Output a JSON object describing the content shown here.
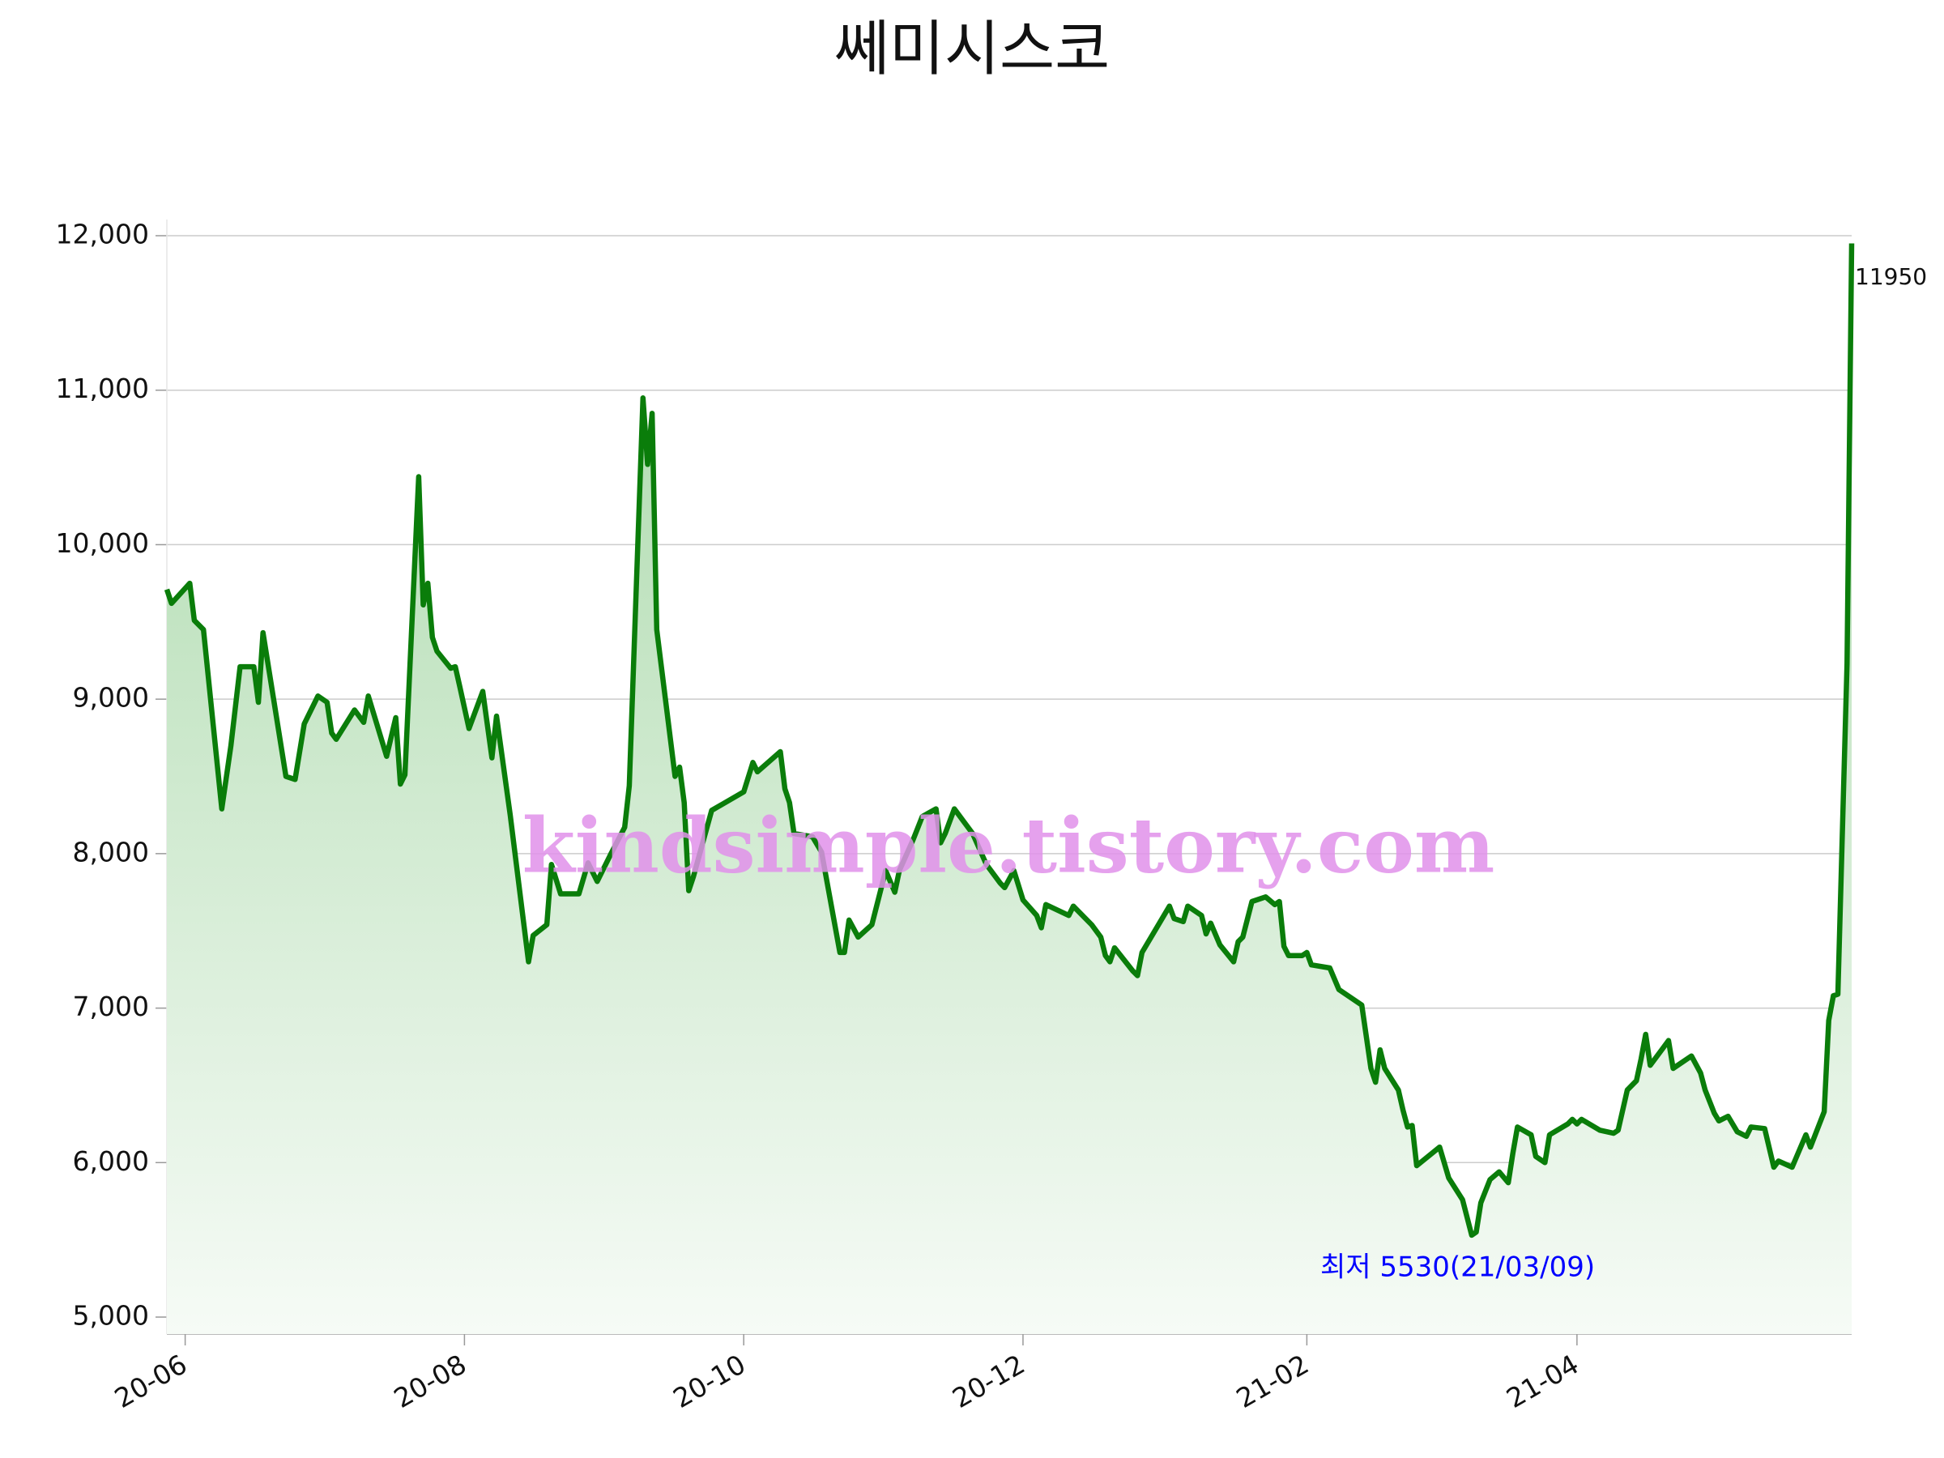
{
  "chart_data": {
    "type": "line",
    "title": "쎄미시스코",
    "watermark": "kindsimple.tistory.com",
    "annotations": [
      {
        "text": "최저 5530(21/03/09)",
        "color": "#0000ff"
      }
    ],
    "ylim": [
      4890,
      12000
    ],
    "yticks": [
      {
        "value": 5000,
        "label": "5,000"
      },
      {
        "value": 6000,
        "label": "6,000"
      },
      {
        "value": 7000,
        "label": "7,000"
      },
      {
        "value": 8000,
        "label": "8,000"
      },
      {
        "value": 9000,
        "label": "9,000"
      },
      {
        "value": 10000,
        "label": "10,000"
      },
      {
        "value": 11000,
        "label": "11,000"
      },
      {
        "value": 12000,
        "label": "12,000"
      }
    ],
    "xlim": [
      "2020-05-28",
      "2021-05-31"
    ],
    "xticks": [
      {
        "value": "2020-06-01",
        "label": "20-06"
      },
      {
        "value": "2020-08-01",
        "label": "20-08"
      },
      {
        "value": "2020-10-01",
        "label": "20-10"
      },
      {
        "value": "2020-12-01",
        "label": "20-12"
      },
      {
        "value": "2021-02-01",
        "label": "21-02"
      },
      {
        "value": "2021-04-01",
        "label": "21-04"
      }
    ],
    "grid": true,
    "x": [
      "2020-05-28",
      "2020-05-29",
      "2020-06-02",
      "2020-06-03",
      "2020-06-05",
      "2020-06-09",
      "2020-06-11",
      "2020-06-13",
      "2020-06-16",
      "2020-06-17",
      "2020-06-18",
      "2020-06-23",
      "2020-06-25",
      "2020-06-27",
      "2020-06-30",
      "2020-07-02",
      "2020-07-03",
      "2020-07-04",
      "2020-07-08",
      "2020-07-10",
      "2020-07-11",
      "2020-07-15",
      "2020-07-17",
      "2020-07-18",
      "2020-07-19",
      "2020-07-22",
      "2020-07-23",
      "2020-07-24",
      "2020-07-25",
      "2020-07-26",
      "2020-07-29",
      "2020-07-30",
      "2020-07-31",
      "2020-08-02",
      "2020-08-05",
      "2020-08-07",
      "2020-08-08",
      "2020-08-11",
      "2020-08-15",
      "2020-08-16",
      "2020-08-19",
      "2020-08-20",
      "2020-08-22",
      "2020-08-26",
      "2020-08-28",
      "2020-08-30",
      "2020-09-02",
      "2020-09-05",
      "2020-09-06",
      "2020-09-09",
      "2020-09-10",
      "2020-09-11",
      "2020-09-12",
      "2020-09-16",
      "2020-09-17",
      "2020-09-18",
      "2020-09-19",
      "2020-09-20",
      "2020-09-24",
      "2020-10-01",
      "2020-10-03",
      "2020-10-04",
      "2020-10-09",
      "2020-10-10",
      "2020-10-11",
      "2020-10-12",
      "2020-10-16",
      "2020-10-18",
      "2020-10-22",
      "2020-10-23",
      "2020-10-24",
      "2020-10-26",
      "2020-10-29",
      "2020-11-01",
      "2020-11-03",
      "2020-11-04",
      "2020-11-07",
      "2020-11-09",
      "2020-11-12",
      "2020-11-13",
      "2020-11-14",
      "2020-11-16",
      "2020-11-20",
      "2020-11-23",
      "2020-11-26",
      "2020-11-27",
      "2020-11-29",
      "2020-12-01",
      "2020-12-04",
      "2020-12-05",
      "2020-12-06",
      "2020-12-11",
      "2020-12-12",
      "2020-12-16",
      "2020-12-18",
      "2020-12-19",
      "2020-12-20",
      "2020-12-21",
      "2020-12-25",
      "2020-12-26",
      "2020-12-27",
      "2021-01-02",
      "2021-01-03",
      "2021-01-05",
      "2021-01-06",
      "2021-01-09",
      "2021-01-10",
      "2021-01-11",
      "2021-01-13",
      "2021-01-16",
      "2021-01-17",
      "2021-01-18",
      "2021-01-20",
      "2021-01-23",
      "2021-01-25",
      "2021-01-26",
      "2021-01-27",
      "2021-01-28",
      "2021-01-31",
      "2021-02-01",
      "2021-02-02",
      "2021-02-06",
      "2021-02-08",
      "2021-02-13",
      "2021-02-15",
      "2021-02-16",
      "2021-02-17",
      "2021-02-18",
      "2021-02-21",
      "2021-02-22",
      "2021-02-23",
      "2021-02-24",
      "2021-02-25",
      "2021-03-02",
      "2021-03-04",
      "2021-03-07",
      "2021-03-09",
      "2021-03-10",
      "2021-03-11",
      "2021-03-13",
      "2021-03-15",
      "2021-03-17",
      "2021-03-18",
      "2021-03-19",
      "2021-03-22",
      "2021-03-23",
      "2021-03-25",
      "2021-03-26",
      "2021-03-30",
      "2021-03-31",
      "2021-04-01",
      "2021-04-02",
      "2021-04-06",
      "2021-04-09",
      "2021-04-10",
      "2021-04-12",
      "2021-04-14",
      "2021-04-15",
      "2021-04-16",
      "2021-04-17",
      "2021-04-20",
      "2021-04-21",
      "2021-04-22",
      "2021-04-26",
      "2021-04-28",
      "2021-04-29",
      "2021-05-01",
      "2021-05-02",
      "2021-05-04",
      "2021-05-06",
      "2021-05-08",
      "2021-05-09",
      "2021-05-12",
      "2021-05-14",
      "2021-05-15",
      "2021-05-18",
      "2021-05-21",
      "2021-05-22",
      "2021-05-25",
      "2021-05-26",
      "2021-05-27",
      "2021-05-28",
      "2021-05-30",
      "2021-05-31"
    ],
    "series": [
      {
        "name": "쎄미시스코",
        "color": "#0a7d0a",
        "values": [
          9710,
          9620,
          9750,
          9510,
          9450,
          8290,
          8700,
          9210,
          9210,
          8980,
          9430,
          8500,
          8480,
          8840,
          9020,
          8980,
          8780,
          8740,
          8930,
          8850,
          9020,
          8630,
          8880,
          8450,
          8510,
          10440,
          9610,
          9750,
          9400,
          9310,
          9200,
          9210,
          9080,
          8810,
          9050,
          8620,
          8890,
          8250,
          7300,
          7470,
          7540,
          7930,
          7740,
          7740,
          7940,
          7820,
          8000,
          8170,
          8440,
          10950,
          10520,
          10850,
          9450,
          8500,
          8560,
          8330,
          7760,
          7850,
          8280,
          8400,
          8590,
          8530,
          8660,
          8420,
          8330,
          8130,
          8110,
          8010,
          7360,
          7360,
          7570,
          7460,
          7540,
          7890,
          7750,
          7890,
          8090,
          8240,
          8290,
          8070,
          8130,
          8290,
          8130,
          7930,
          7810,
          7780,
          7890,
          7700,
          7600,
          7520,
          7670,
          7600,
          7660,
          7540,
          7460,
          7340,
          7300,
          7390,
          7240,
          7210,
          7360,
          7660,
          7580,
          7560,
          7660,
          7600,
          7480,
          7550,
          7410,
          7300,
          7430,
          7460,
          7690,
          7720,
          7670,
          7690,
          7400,
          7340,
          7340,
          7360,
          7280,
          7260,
          7120,
          7020,
          6610,
          6520,
          6730,
          6610,
          6470,
          6340,
          6230,
          6240,
          5980,
          6100,
          5900,
          5760,
          5530,
          5550,
          5740,
          5890,
          5940,
          5870,
          6060,
          6230,
          6180,
          6040,
          6000,
          6180,
          6250,
          6280,
          6250,
          6280,
          6210,
          6190,
          6210,
          6470,
          6530,
          6670,
          6830,
          6630,
          6750,
          6790,
          6610,
          6690,
          6580,
          6470,
          6320,
          6270,
          6300,
          6200,
          6170,
          6230,
          6220,
          5970,
          6010,
          5970,
          6180,
          6100,
          6330,
          6920,
          7080,
          7090,
          9230,
          11950
        ]
      }
    ]
  }
}
